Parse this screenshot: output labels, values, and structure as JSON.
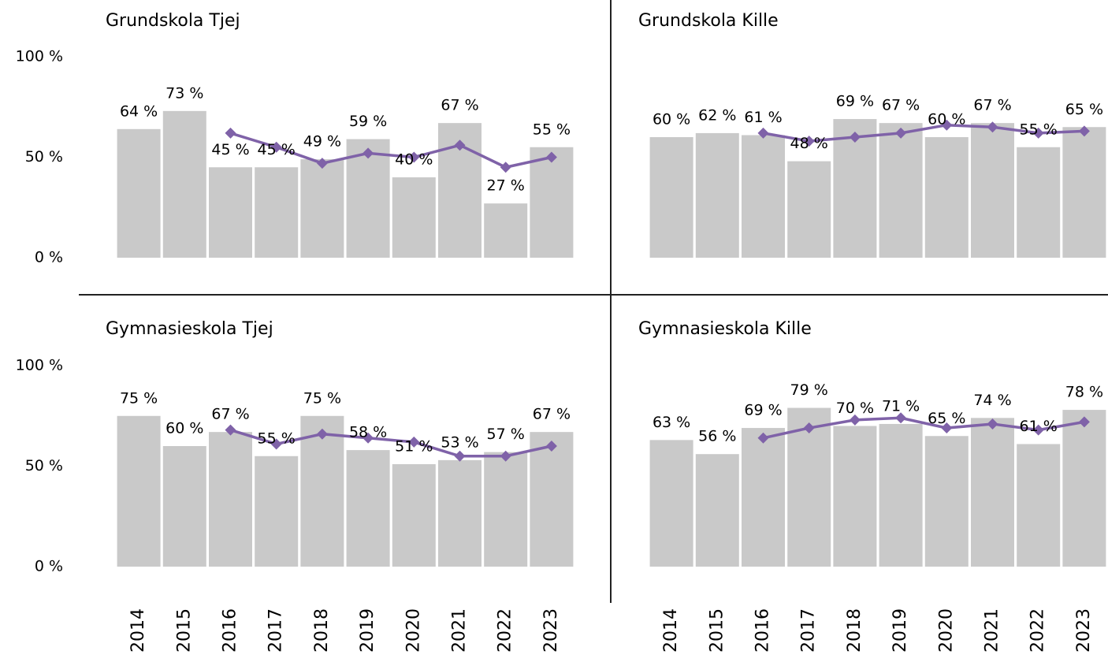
{
  "chart_data": [
    {
      "type": "bar",
      "title": "Grundskola Tjej",
      "ylim": [
        0,
        100
      ],
      "yticks": [
        {
          "value": 0,
          "label": "0 %"
        },
        {
          "value": 50,
          "label": "50 %"
        },
        {
          "value": 100,
          "label": "100 %"
        }
      ],
      "series": [
        {
          "type": "bar",
          "color": "#c9c9c9",
          "values": [
            64,
            73,
            45,
            45,
            49,
            59,
            40,
            67,
            27,
            55
          ],
          "value_labels": [
            "64 %",
            "73 %",
            "45 %",
            "45 %",
            "49 %",
            "59 %",
            "40 %",
            "67 %",
            "27 %",
            "55 %"
          ]
        },
        {
          "type": "line",
          "color": "#7f62a8",
          "values": [
            null,
            null,
            62,
            55,
            47,
            52,
            50,
            56,
            45,
            50
          ]
        }
      ]
    },
    {
      "type": "bar",
      "title": "Grundskola Kille",
      "ylim": [
        0,
        100
      ],
      "series": [
        {
          "type": "bar",
          "color": "#c9c9c9",
          "values": [
            60,
            62,
            61,
            48,
            69,
            67,
            60,
            67,
            55,
            65
          ],
          "value_labels": [
            "60 %",
            "62 %",
            "61 %",
            "48 %",
            "69 %",
            "67 %",
            "60 %",
            "67 %",
            "55 %",
            "65 %"
          ]
        },
        {
          "type": "line",
          "color": "#7f62a8",
          "values": [
            null,
            null,
            62,
            58,
            60,
            62,
            66,
            65,
            62,
            63
          ]
        }
      ]
    },
    {
      "type": "bar",
      "title": "Gymnasieskola Tjej",
      "ylim": [
        0,
        100
      ],
      "yticks": [
        {
          "value": 0,
          "label": "0 %"
        },
        {
          "value": 50,
          "label": "50 %"
        },
        {
          "value": 100,
          "label": "100 %"
        }
      ],
      "categories": [
        "2014",
        "2015",
        "2016",
        "2017",
        "2018",
        "2019",
        "2020",
        "2021",
        "2022",
        "2023"
      ],
      "series": [
        {
          "type": "bar",
          "color": "#c9c9c9",
          "values": [
            75,
            60,
            67,
            55,
            75,
            58,
            51,
            53,
            57,
            67
          ],
          "value_labels": [
            "75 %",
            "60 %",
            "67 %",
            "55 %",
            "75 %",
            "58 %",
            "51 %",
            "53 %",
            "57 %",
            "67 %"
          ]
        },
        {
          "type": "line",
          "color": "#7f62a8",
          "values": [
            null,
            null,
            68,
            61,
            66,
            64,
            62,
            55,
            55,
            60
          ]
        }
      ]
    },
    {
      "type": "bar",
      "title": "Gymnasieskola Kille",
      "ylim": [
        0,
        100
      ],
      "categories": [
        "2014",
        "2015",
        "2016",
        "2017",
        "2018",
        "2019",
        "2020",
        "2021",
        "2022",
        "2023"
      ],
      "series": [
        {
          "type": "bar",
          "color": "#c9c9c9",
          "values": [
            63,
            56,
            69,
            79,
            70,
            71,
            65,
            74,
            61,
            78
          ],
          "value_labels": [
            "63 %",
            "56 %",
            "69 %",
            "79 %",
            "70 %",
            "71 %",
            "65 %",
            "74 %",
            "61 %",
            "78 %"
          ]
        },
        {
          "type": "line",
          "color": "#7f62a8",
          "values": [
            null,
            null,
            64,
            69,
            73,
            74,
            69,
            71,
            68,
            72
          ]
        }
      ]
    }
  ]
}
